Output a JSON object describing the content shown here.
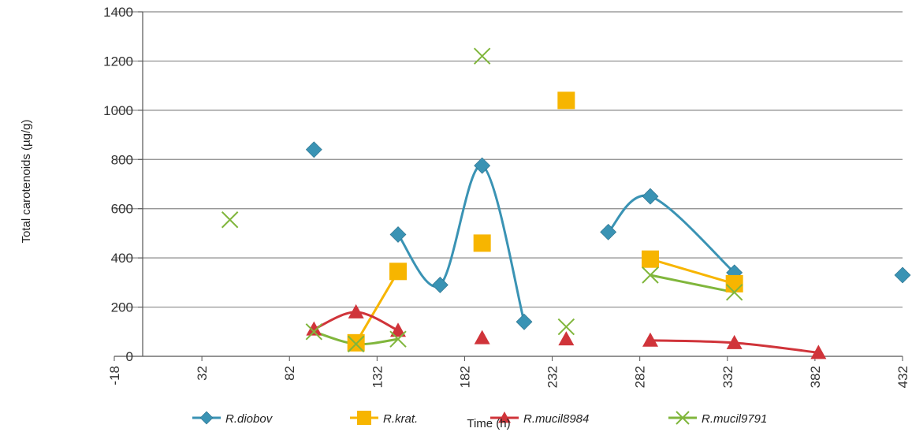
{
  "chart_data": {
    "type": "scatter",
    "title": "",
    "xlabel": "Time (h)",
    "ylabel": "Total carotenoids (µg/g)",
    "xlim": [
      -18,
      432
    ],
    "ylim": [
      0,
      1400
    ],
    "x_ticks": [
      -18,
      32,
      82,
      132,
      182,
      232,
      282,
      332,
      382,
      432
    ],
    "y_ticks": [
      0,
      200,
      400,
      600,
      800,
      1000,
      1200,
      1400
    ],
    "grid": "horizontal",
    "legend_position": "bottom",
    "series": [
      {
        "name": "R.diobov",
        "color": "#3a93b4",
        "marker": "diamond",
        "points": [
          [
            96,
            840
          ],
          [
            144,
            495
          ],
          [
            168,
            290
          ],
          [
            192,
            775
          ],
          [
            216,
            140
          ],
          [
            264,
            505
          ],
          [
            288,
            650
          ],
          [
            336,
            340
          ],
          [
            432,
            330
          ]
        ],
        "curves": [
          [
            [
              144,
              495
            ],
            [
              168,
              290
            ],
            [
              192,
              775
            ],
            [
              216,
              140
            ]
          ],
          [
            [
              264,
              505
            ],
            [
              288,
              650
            ],
            [
              336,
              340
            ]
          ]
        ]
      },
      {
        "name": "R.krat.",
        "color": "#f7b500",
        "marker": "square",
        "points": [
          [
            120,
            55
          ],
          [
            144,
            345
          ],
          [
            192,
            460
          ],
          [
            240,
            1040
          ],
          [
            288,
            395
          ],
          [
            336,
            295
          ]
        ],
        "curves": [
          [
            [
              120,
              55
            ],
            [
              144,
              345
            ]
          ],
          [
            [
              288,
              395
            ],
            [
              336,
              295
            ]
          ]
        ]
      },
      {
        "name": "R.mucil8984",
        "color": "#d0343a",
        "marker": "triangle",
        "points": [
          [
            96,
            110
          ],
          [
            120,
            180
          ],
          [
            144,
            105
          ],
          [
            192,
            75
          ],
          [
            240,
            70
          ],
          [
            288,
            65
          ],
          [
            336,
            55
          ],
          [
            384,
            15
          ]
        ],
        "curves": [
          [
            [
              96,
              110
            ],
            [
              120,
              180
            ],
            [
              144,
              105
            ]
          ],
          [
            [
              288,
              65
            ],
            [
              336,
              55
            ],
            [
              384,
              15
            ]
          ]
        ]
      },
      {
        "name": "R.mucil9791",
        "color": "#80b63c",
        "marker": "x",
        "points": [
          [
            48,
            555
          ],
          [
            96,
            100
          ],
          [
            120,
            50
          ],
          [
            144,
            70
          ],
          [
            192,
            1220
          ],
          [
            240,
            120
          ],
          [
            288,
            330
          ],
          [
            336,
            260
          ]
        ],
        "curves": [
          [
            [
              96,
              100
            ],
            [
              120,
              50
            ],
            [
              144,
              70
            ]
          ],
          [
            [
              288,
              330
            ],
            [
              336,
              260
            ]
          ]
        ]
      }
    ]
  }
}
